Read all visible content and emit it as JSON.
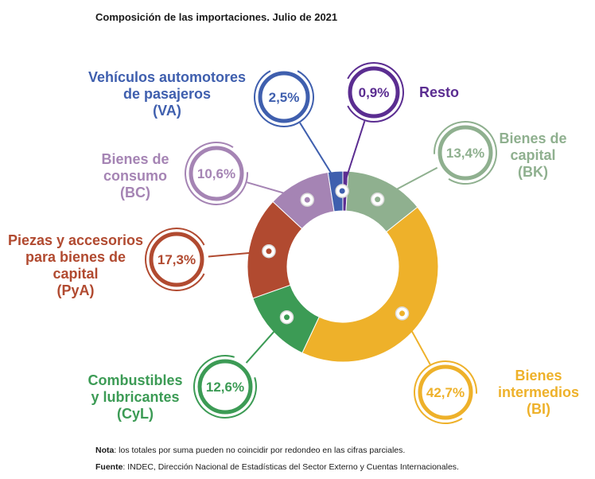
{
  "title": "Composición de las importaciones. Julio de 2021",
  "chart_data": {
    "type": "pie",
    "variant": "donut",
    "title": "Composición de las importaciones. Julio de 2021",
    "slices": [
      {
        "key": "resto",
        "label_lines": [
          "Resto"
        ],
        "value": 0.9,
        "display": "0,9%",
        "color": "#5b2d91"
      },
      {
        "key": "bk",
        "label_lines": [
          "Bienes de",
          "capital",
          "(BK)"
        ],
        "value": 13.4,
        "display": "13,4%",
        "color": "#8fb08f"
      },
      {
        "key": "bi",
        "label_lines": [
          "Bienes",
          "intermedios",
          "(BI)"
        ],
        "value": 42.7,
        "display": "42,7%",
        "color": "#eeb12a"
      },
      {
        "key": "cyl",
        "label_lines": [
          "Combustibles",
          "y lubricantes",
          "(CyL)"
        ],
        "value": 12.6,
        "display": "12,6%",
        "color": "#3c9b55"
      },
      {
        "key": "pya",
        "label_lines": [
          "Piezas y accesorios",
          "para bienes de",
          "capital",
          "(PyA)"
        ],
        "value": 17.3,
        "display": "17,3%",
        "color": "#b14a30"
      },
      {
        "key": "bc",
        "label_lines": [
          "Bienes de",
          "consumo",
          "(BC)"
        ],
        "value": 10.6,
        "display": "10,6%",
        "color": "#a584b4"
      },
      {
        "key": "va",
        "label_lines": [
          "Vehículos automotores",
          "de pasajeros",
          "(VA)"
        ],
        "value": 2.5,
        "display": "2,5%",
        "color": "#3f5fae"
      }
    ]
  },
  "notes": {
    "nota_label": "Nota",
    "nota_text": ": los totales por suma pueden no coincidir por redondeo en las cifras parciales.",
    "fuente_label": "Fuente",
    "fuente_text": ": INDEC, Dirección Nacional de Estadísticas del Sector Externo y Cuentas Internacionales."
  }
}
